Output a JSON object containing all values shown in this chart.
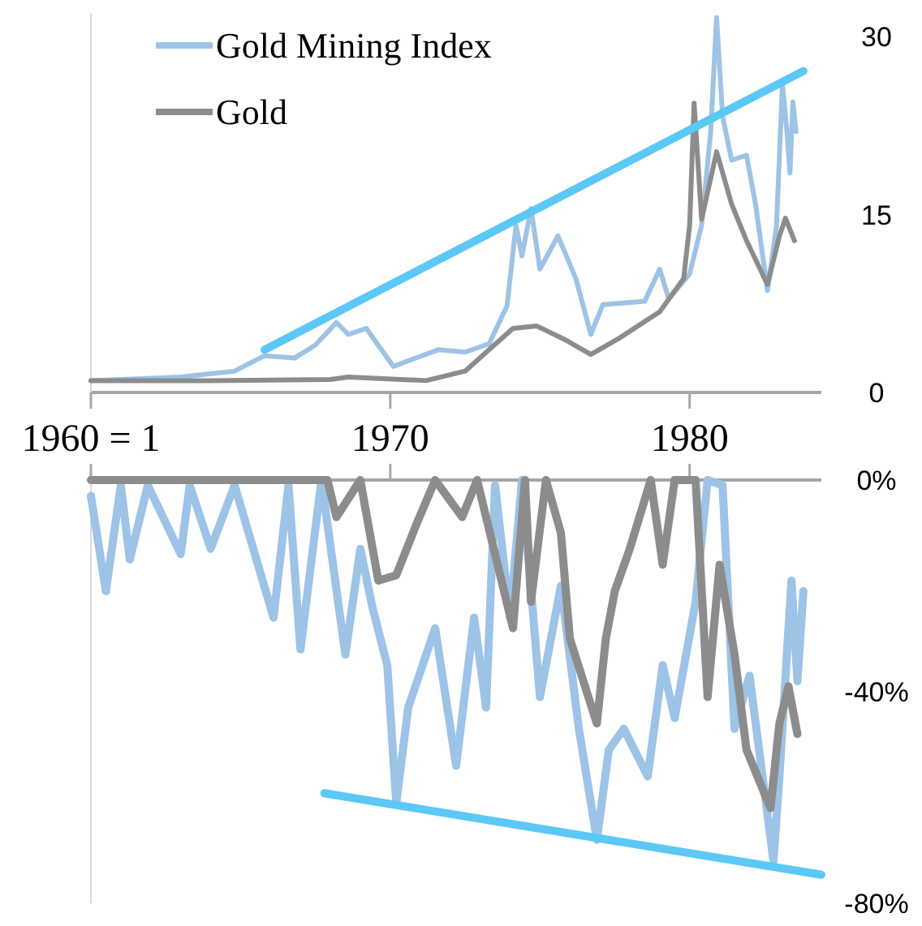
{
  "chart_data": [
    {
      "type": "line",
      "xlim": [
        1960,
        1984.4
      ],
      "xticks": [
        {
          "value": 1960,
          "label": "1960 = 1"
        },
        1970,
        1980
      ],
      "ylim": [
        0,
        32
      ],
      "yticks": [
        0,
        15,
        30
      ],
      "legend": "top left",
      "series": [
        {
          "name": "Gold Mining Index",
          "color": "#9dc3e6",
          "x": [
            1960,
            1962,
            1963,
            1964.8,
            1965.8,
            1966.8,
            1967.5,
            1968.2,
            1968.6,
            1969.2,
            1970.1,
            1971.6,
            1972.5,
            1973.3,
            1973.9,
            1974.2,
            1974.4,
            1974.7,
            1975,
            1975.6,
            1976.2,
            1976.7,
            1977.1,
            1978.5,
            1979,
            1979.3,
            1980,
            1980.4,
            1980.7,
            1980.9,
            1981.1,
            1981.4,
            1981.9,
            1982.2,
            1982.6,
            1982.9,
            1983.1,
            1983.25,
            1983.35,
            1983.45,
            1983.55
          ],
          "values": [
            1,
            1.2,
            1.3,
            1.8,
            3.1,
            2.9,
            4,
            5.9,
            4.9,
            5.4,
            2.2,
            3.6,
            3.4,
            4.1,
            7.3,
            14.1,
            11.5,
            15.5,
            10.4,
            13.2,
            9.6,
            4.9,
            7.4,
            7.7,
            10.4,
            7.9,
            10,
            14.1,
            21.9,
            31.6,
            23.3,
            19.6,
            20,
            15.9,
            8.6,
            14,
            26,
            22,
            18.5,
            24.5,
            22
          ]
        },
        {
          "name": "Gold",
          "color": "#8c8c8c",
          "x": [
            1960,
            1964,
            1968,
            1968.6,
            1971.2,
            1972.5,
            1973.3,
            1974.1,
            1974.9,
            1975.8,
            1976.7,
            1977.6,
            1979,
            1979.8,
            1980,
            1980.15,
            1980.4,
            1980.9,
            1981.4,
            1981.9,
            1982.6,
            1983,
            1983.2,
            1983.5
          ],
          "values": [
            1,
            1,
            1.1,
            1.3,
            1,
            1.8,
            3.6,
            5.4,
            5.6,
            4.5,
            3.2,
            4.5,
            6.8,
            9.6,
            14.1,
            24.4,
            14.6,
            20.3,
            15.9,
            12.8,
            9.1,
            13.2,
            14.7,
            12.8
          ]
        },
        {
          "color": "#5bc8f5",
          "x": [
            1965.8,
            1983.8
          ],
          "values": [
            3.6,
            27.1
          ]
        }
      ]
    },
    {
      "type": "line",
      "xlim": [
        1960,
        1984.4
      ],
      "xticks": [
        1960,
        1970,
        1980
      ],
      "ylim": [
        -80,
        0
      ],
      "yticks": [
        {
          "value": 0,
          "label": "0%"
        },
        {
          "value": -40,
          "label": "-40%"
        },
        {
          "value": -80,
          "label": "-80%"
        }
      ],
      "tick_labels": "y",
      "series": [
        {
          "color": "#9dc3e6",
          "x": [
            1960,
            1960.5,
            1961,
            1961.3,
            1961.9,
            1963,
            1963.3,
            1964,
            1964.8,
            1966.1,
            1966.6,
            1967,
            1967.7,
            1968.5,
            1969,
            1969.4,
            1969.9,
            1970.2,
            1970.6,
            1971.5,
            1972.2,
            1972.8,
            1973.2,
            1973.5,
            1974,
            1974.4,
            1975,
            1975.7,
            1976.3,
            1976.9,
            1977.3,
            1977.8,
            1978.6,
            1979.1,
            1979.5,
            1980.2,
            1980.6,
            1981.1,
            1981.5,
            1982,
            1982.8,
            1983,
            1983.4,
            1983.6,
            1983.8
          ],
          "values": [
            -3,
            -21,
            -1,
            -15,
            -1,
            -14,
            -1,
            -13,
            -1,
            -26,
            -1,
            -32,
            0,
            -33,
            -13,
            -24,
            -35,
            -61,
            -43,
            -28,
            -54,
            -26,
            -43,
            -1,
            -26,
            0,
            -41,
            -20,
            -47,
            -68,
            -51,
            -47,
            -56,
            -35,
            -45,
            -23,
            0,
            -1,
            -47,
            -37,
            -72,
            -56,
            -19,
            -38,
            -21
          ]
        },
        {
          "color": "#8c8c8c",
          "x": [
            1960,
            1967.9,
            1968.2,
            1969,
            1969.6,
            1970.2,
            1970.9,
            1971.5,
            1972.4,
            1972.9,
            1974.1,
            1974.5,
            1974.7,
            1975.2,
            1975.7,
            1976,
            1976.9,
            1977.2,
            1977.5,
            1978,
            1978.7,
            1979.1,
            1979.5,
            1980.2,
            1980.6,
            1981,
            1981.5,
            1981.9,
            1982.7,
            1983,
            1983.3,
            1983.6
          ],
          "values": [
            0,
            0,
            -7,
            0,
            -19,
            -18,
            -8,
            0,
            -7,
            0,
            -28,
            0,
            -23,
            0,
            -10,
            -30,
            -46,
            -30,
            -21,
            -13,
            0,
            -16,
            0,
            0,
            -41,
            -16,
            -33,
            -51,
            -62,
            -46,
            -39,
            -48
          ]
        },
        {
          "color": "#5bc8f5",
          "x": [
            1967.8,
            1984.4
          ],
          "values": [
            -59.2,
            -74.6
          ]
        }
      ]
    }
  ]
}
